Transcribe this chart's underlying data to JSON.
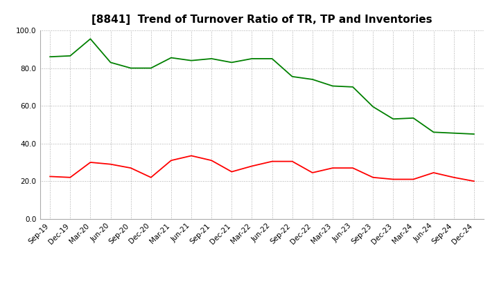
{
  "title": "[8841]  Trend of Turnover Ratio of TR, TP and Inventories",
  "x_labels": [
    "Sep-19",
    "Dec-19",
    "Mar-20",
    "Jun-20",
    "Sep-20",
    "Dec-20",
    "Mar-21",
    "Jun-21",
    "Sep-21",
    "Dec-21",
    "Mar-22",
    "Jun-22",
    "Sep-22",
    "Dec-22",
    "Mar-23",
    "Jun-23",
    "Sep-23",
    "Dec-23",
    "Mar-24",
    "Jun-24",
    "Sep-24",
    "Dec-24"
  ],
  "trade_receivables": [
    22.5,
    22.0,
    30.0,
    29.0,
    27.0,
    22.0,
    31.0,
    33.5,
    31.0,
    25.0,
    28.0,
    30.5,
    30.5,
    24.5,
    27.0,
    27.0,
    22.0,
    21.0,
    21.0,
    24.5,
    22.0,
    20.0
  ],
  "inventories": [
    86.0,
    86.5,
    95.5,
    83.0,
    80.0,
    80.0,
    85.5,
    84.0,
    85.0,
    83.0,
    85.0,
    85.0,
    75.5,
    74.0,
    70.5,
    70.0,
    59.5,
    53.0,
    53.5,
    46.0,
    45.5,
    45.0
  ],
  "ylim": [
    0.0,
    100.0
  ],
  "yticks": [
    0.0,
    20.0,
    40.0,
    60.0,
    80.0,
    100.0
  ],
  "color_tr": "#FF0000",
  "color_tp": "#0000CD",
  "color_inv": "#008000",
  "bg_color": "#FFFFFF",
  "grid_color": "#AAAAAA",
  "title_fontsize": 11,
  "tick_fontsize": 7.5,
  "legend_fontsize": 8.5
}
